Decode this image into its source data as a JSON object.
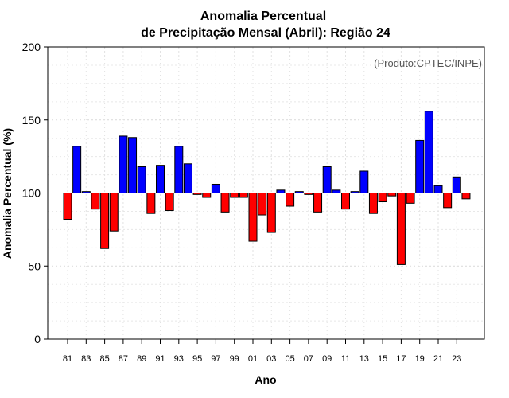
{
  "chart_data": {
    "type": "bar",
    "title_line1": "Anomalia Percentual",
    "title_line2": "de Precipitação Mensal (Abril): Região 24",
    "credit": "(Produto:CPTEC/INPE)",
    "xlabel": "Ano",
    "ylabel": "Anomalia Percentual (%)",
    "ylim": [
      0,
      200
    ],
    "yticks": [
      "0",
      "50",
      "100",
      "150",
      "200"
    ],
    "baseline": 100,
    "colors": {
      "above": "#0000ff",
      "below": "#ff0000"
    },
    "categories": [
      "81",
      "82",
      "83",
      "84",
      "85",
      "86",
      "87",
      "88",
      "89",
      "90",
      "91",
      "92",
      "93",
      "94",
      "95",
      "96",
      "97",
      "98",
      "99",
      "00",
      "01",
      "02",
      "03",
      "04",
      "05",
      "06",
      "07",
      "08",
      "09",
      "10",
      "11",
      "12",
      "13",
      "14",
      "15",
      "16",
      "17",
      "18",
      "19",
      "20",
      "21",
      "22",
      "23",
      "24"
    ],
    "xtick_labels": [
      "81",
      "83",
      "85",
      "87",
      "89",
      "91",
      "93",
      "95",
      "97",
      "99",
      "01",
      "03",
      "05",
      "07",
      "09",
      "11",
      "13",
      "15",
      "17",
      "19",
      "21",
      "23"
    ],
    "values": [
      82,
      132,
      101,
      89,
      62,
      74,
      139,
      138,
      118,
      86,
      119,
      88,
      132,
      120,
      99,
      97,
      106,
      87,
      97,
      97,
      67,
      85,
      73,
      102,
      91,
      101,
      99,
      87,
      118,
      102,
      89,
      101,
      115,
      86,
      94,
      98,
      51,
      93,
      136,
      156,
      105,
      90,
      111,
      96
    ]
  }
}
